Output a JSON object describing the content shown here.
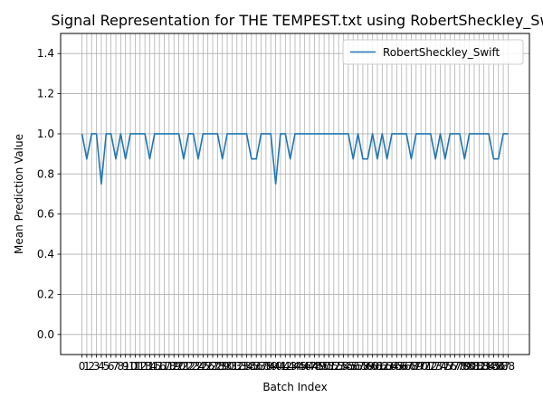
{
  "chart_data": {
    "type": "line",
    "title": "Signal Representation for THE TEMPEST.txt using RobertSheckley_Swift",
    "xlabel": "Batch Index",
    "ylabel": "Mean Prediction Value",
    "xlim": [
      -4.4,
      92.4
    ],
    "ylim": [
      -0.1,
      1.5
    ],
    "yticks": [
      "0.0",
      "0.2",
      "0.4",
      "0.6",
      "0.8",
      "1.0",
      "1.2",
      "1.4"
    ],
    "xticks": [
      "0",
      "1",
      "2",
      "3",
      "4",
      "5",
      "6",
      "7",
      "8",
      "9",
      "10",
      "11",
      "12",
      "13",
      "14",
      "15",
      "16",
      "17",
      "18",
      "19",
      "20",
      "21",
      "22",
      "23",
      "24",
      "25",
      "26",
      "27",
      "28",
      "29",
      "30",
      "31",
      "32",
      "33",
      "34",
      "35",
      "36",
      "37",
      "38",
      "39",
      "40",
      "41",
      "42",
      "43",
      "44",
      "45",
      "46",
      "47",
      "48",
      "49",
      "50",
      "51",
      "52",
      "53",
      "54",
      "55",
      "56",
      "57",
      "58",
      "59",
      "60",
      "61",
      "62",
      "63",
      "64",
      "65",
      "66",
      "67",
      "68",
      "69",
      "70",
      "71",
      "72",
      "73",
      "74",
      "75",
      "76",
      "77",
      "78",
      "79",
      "80",
      "81",
      "82",
      "83",
      "84",
      "85",
      "86",
      "87",
      "88"
    ],
    "grid": true,
    "legend_position": "top-right",
    "series": [
      {
        "name": "RobertSheckley_Swift",
        "color": "#1f77b4",
        "x": [
          0,
          1,
          2,
          3,
          4,
          5,
          6,
          7,
          8,
          9,
          10,
          11,
          12,
          13,
          14,
          15,
          16,
          17,
          18,
          19,
          20,
          21,
          22,
          23,
          24,
          25,
          26,
          27,
          28,
          29,
          30,
          31,
          32,
          33,
          34,
          35,
          36,
          37,
          38,
          39,
          40,
          41,
          42,
          43,
          44,
          45,
          46,
          47,
          48,
          49,
          50,
          51,
          52,
          53,
          54,
          55,
          56,
          57,
          58,
          59,
          60,
          61,
          62,
          63,
          64,
          65,
          66,
          67,
          68,
          69,
          70,
          71,
          72,
          73,
          74,
          75,
          76,
          77,
          78,
          79,
          80,
          81,
          82,
          83,
          84,
          85,
          86,
          87,
          88
        ],
        "values": [
          1.0,
          0.875,
          1.0,
          1.0,
          0.75,
          1.0,
          1.0,
          0.875,
          1.0,
          0.875,
          1.0,
          1.0,
          1.0,
          1.0,
          0.875,
          1.0,
          1.0,
          1.0,
          1.0,
          1.0,
          1.0,
          0.875,
          1.0,
          1.0,
          0.875,
          1.0,
          1.0,
          1.0,
          1.0,
          0.875,
          1.0,
          1.0,
          1.0,
          1.0,
          1.0,
          0.875,
          0.875,
          1.0,
          1.0,
          1.0,
          0.75,
          1.0,
          1.0,
          0.875,
          1.0,
          1.0,
          1.0,
          1.0,
          1.0,
          1.0,
          1.0,
          1.0,
          1.0,
          1.0,
          1.0,
          1.0,
          0.875,
          1.0,
          0.875,
          0.875,
          1.0,
          0.875,
          1.0,
          0.875,
          1.0,
          1.0,
          1.0,
          1.0,
          0.875,
          1.0,
          1.0,
          1.0,
          1.0,
          0.875,
          1.0,
          0.875,
          1.0,
          1.0,
          1.0,
          0.875,
          1.0,
          1.0,
          1.0,
          1.0,
          1.0,
          0.875,
          0.875,
          1.0,
          1.0
        ]
      }
    ]
  }
}
